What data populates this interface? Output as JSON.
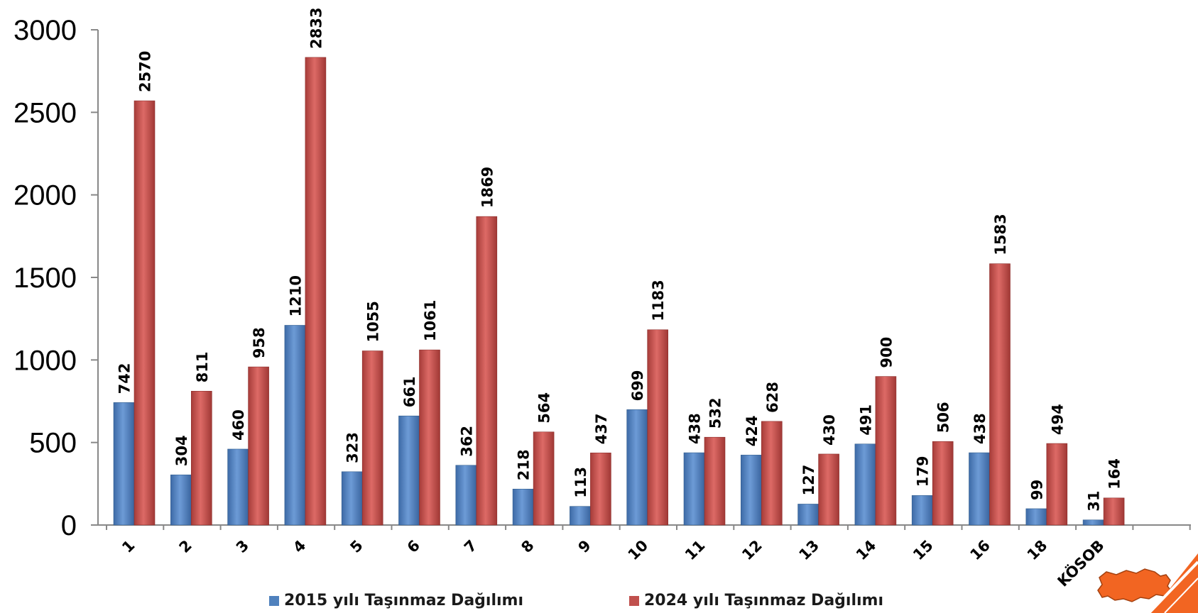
{
  "chart_data": {
    "type": "bar",
    "categories": [
      "1",
      "2",
      "3",
      "4",
      "5",
      "6",
      "7",
      "8",
      "9",
      "10",
      "11",
      "12",
      "13",
      "14",
      "15",
      "16",
      "18",
      "KÖSOB"
    ],
    "series": [
      {
        "name": "2015 yılı Taşınmaz Dağılımı",
        "color": "#4f81bd",
        "values": [
          742,
          304,
          460,
          1210,
          323,
          661,
          362,
          218,
          113,
          699,
          438,
          424,
          127,
          491,
          179,
          438,
          99,
          31
        ]
      },
      {
        "name": "2024 yılı Taşınmaz Dağılımı",
        "color": "#c0504d",
        "values": [
          2570,
          811,
          958,
          2833,
          1055,
          1061,
          1869,
          564,
          437,
          1183,
          532,
          628,
          430,
          900,
          506,
          1583,
          494,
          164
        ]
      }
    ],
    "yticks": [
      "0",
      "500",
      "1000",
      "1500",
      "2000",
      "2500",
      "3000"
    ],
    "ylim": [
      0,
      3000
    ],
    "grid": false,
    "legend_position": "bottom"
  },
  "decoration": {
    "map_icon": "turkey-map-icon",
    "corner_accent": "orange-corner-stripe-icon",
    "accent_color": "#f26522"
  }
}
